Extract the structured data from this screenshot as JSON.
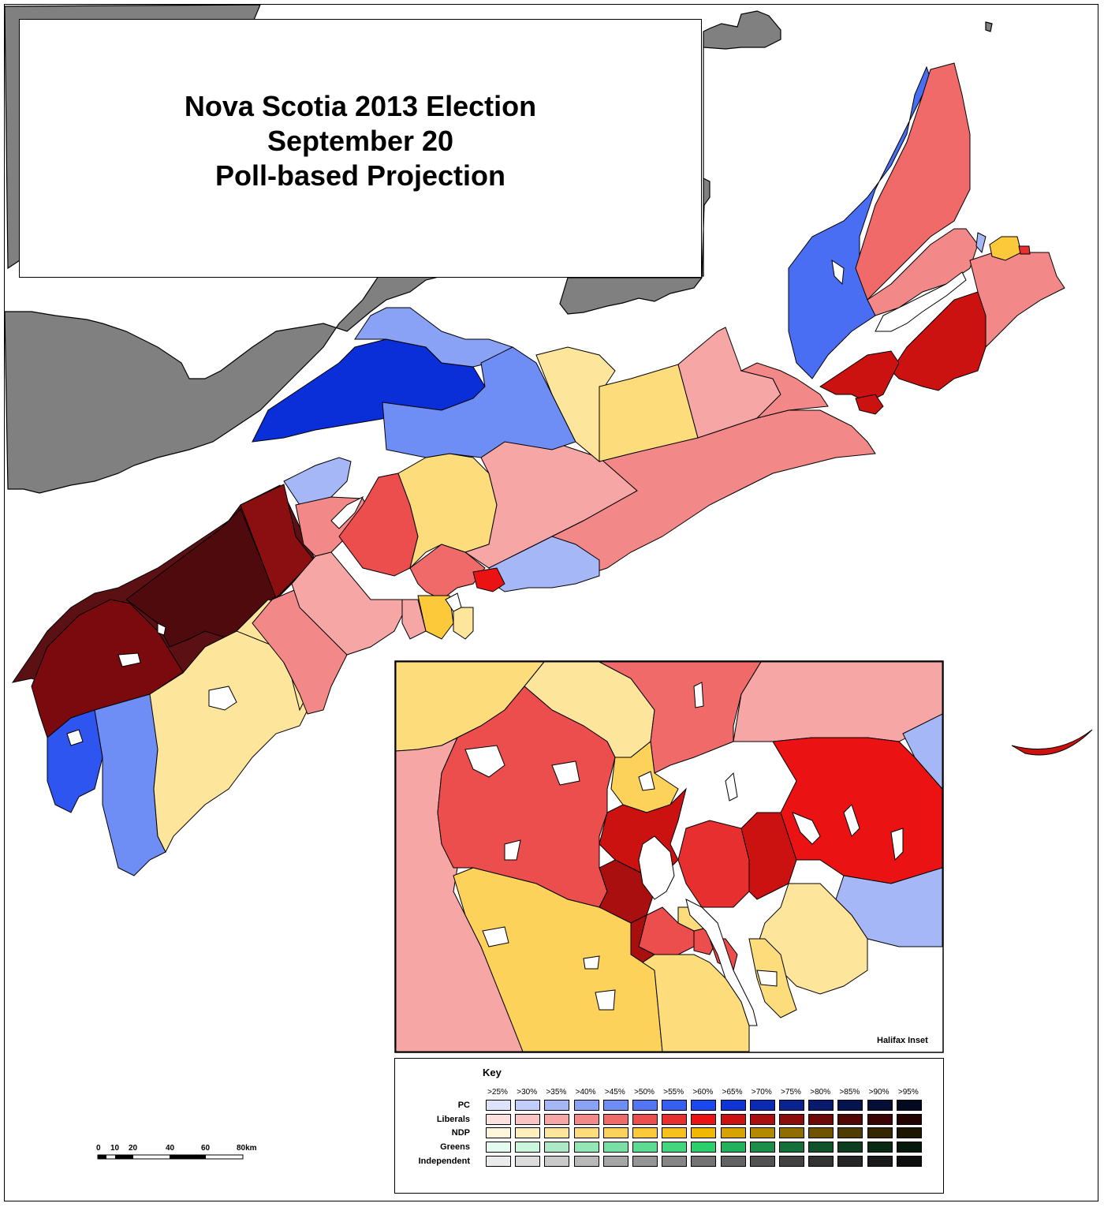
{
  "title": {
    "line1": "Nova Scotia 2013 Election",
    "line2": "September 20",
    "line3": "Poll-based Projection"
  },
  "inset_label": "Halifax Inset",
  "key": {
    "title": "Key",
    "thresholds": [
      ">25%",
      ">30%",
      ">35%",
      ">40%",
      ">45%",
      ">50%",
      ">55%",
      ">60%",
      ">65%",
      ">70%",
      ">75%",
      ">80%",
      ">85%",
      ">90%",
      ">95%"
    ],
    "rows": [
      {
        "label": "PC",
        "colors": [
          "#dde3fb",
          "#c1cdfa",
          "#a5b7f7",
          "#8aa2f6",
          "#6e8df5",
          "#5275f3",
          "#365ef1",
          "#1a48ef",
          "#0f34d6",
          "#0b2ab3",
          "#092390",
          "#071a6d",
          "#05134f",
          "#040e36",
          "#03091f"
        ]
      },
      {
        "label": "Liberals",
        "colors": [
          "#fde1e1",
          "#fbc4c4",
          "#f7a6a6",
          "#f38888",
          "#f06a6a",
          "#ec4d4d",
          "#e82f2f",
          "#ea1212",
          "#cc1111",
          "#aa0f0f",
          "#8c0c0c",
          "#6f0909",
          "#520606",
          "#3a0404",
          "#230202"
        ]
      },
      {
        "label": "NDP",
        "colors": [
          "#fff7dc",
          "#ffefbd",
          "#fde69c",
          "#fddc7b",
          "#fdd25a",
          "#fcc93a",
          "#f6c11e",
          "#f0b800",
          "#d6a300",
          "#b38900",
          "#8f6d00",
          "#6e5400",
          "#4f3c00",
          "#352800",
          "#1e1700"
        ]
      },
      {
        "label": "Greens",
        "colors": [
          "#e6fbef",
          "#c9f6dc",
          "#ade9c7",
          "#93e6b6",
          "#78e0a4",
          "#5ddb92",
          "#44d57f",
          "#2bcf6c",
          "#22b25b",
          "#1b8f49",
          "#156f39",
          "#10532a",
          "#0c3d1f",
          "#082a15",
          "#05180c"
        ]
      },
      {
        "label": "Independent",
        "colors": [
          "#ebebeb",
          "#dcdcdc",
          "#cacaca",
          "#b9b9b9",
          "#a6a6a6",
          "#959595",
          "#858585",
          "#737373",
          "#636363",
          "#525252",
          "#424242",
          "#333333",
          "#262626",
          "#1a1a1a",
          "#0e0e0e"
        ]
      }
    ]
  },
  "scale": {
    "labels": [
      "0",
      "10",
      "20",
      "40",
      "60",
      "80km"
    ]
  },
  "colors": {
    "land_other": "#808080",
    "water": "#ffffff",
    "border": "#000000"
  }
}
